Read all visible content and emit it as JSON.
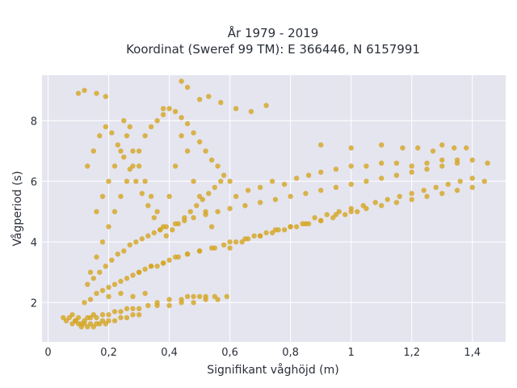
{
  "chart_data": {
    "type": "scatter",
    "title_line1": "År 1979 - 2019",
    "title_line2": "Koordinat (Sweref 99 TM): E 366446, N 6157991",
    "xlabel": "Signifikant våghöjd (m)",
    "ylabel": "Vågperiod (s)",
    "xlim": [
      -0.02,
      1.51
    ],
    "ylim": [
      0.7,
      9.5
    ],
    "x_ticks": [
      {
        "value": 0,
        "label": "0"
      },
      {
        "value": 0.2,
        "label": "0,2"
      },
      {
        "value": 0.4,
        "label": "0,4"
      },
      {
        "value": 0.6,
        "label": "0,6"
      },
      {
        "value": 0.8,
        "label": "0,8"
      },
      {
        "value": 1.0,
        "label": "1"
      },
      {
        "value": 1.2,
        "label": "1,2"
      },
      {
        "value": 1.4,
        "label": "1,4"
      }
    ],
    "y_ticks": [
      {
        "value": 2,
        "label": "2"
      },
      {
        "value": 4,
        "label": "4"
      },
      {
        "value": 6,
        "label": "6"
      },
      {
        "value": 8,
        "label": "8"
      }
    ],
    "grid": true,
    "background": "#e5e5f0",
    "marker_color": "#d4a520",
    "x": [
      0.05,
      0.06,
      0.07,
      0.08,
      0.09,
      0.1,
      0.11,
      0.12,
      0.13,
      0.14,
      0.15,
      0.16,
      0.18,
      0.2,
      0.22,
      0.24,
      0.26,
      0.28,
      0.3,
      0.33,
      0.36,
      0.4,
      0.44,
      0.48,
      0.52,
      0.56,
      0.59,
      0.08,
      0.09,
      0.1,
      0.11,
      0.12,
      0.13,
      0.14,
      0.15,
      0.16,
      0.17,
      0.18,
      0.19,
      0.2,
      0.22,
      0.24,
      0.26,
      0.28,
      0.3,
      0.12,
      0.14,
      0.16,
      0.18,
      0.2,
      0.22,
      0.24,
      0.26,
      0.28,
      0.3,
      0.32,
      0.34,
      0.36,
      0.38,
      0.4,
      0.43,
      0.46,
      0.5,
      0.55,
      0.6,
      0.65,
      0.7,
      0.75,
      0.8,
      0.85,
      0.9,
      0.95,
      1.0,
      1.05,
      1.1,
      1.15,
      1.2,
      1.25,
      1.3,
      1.35,
      1.4,
      1.44,
      0.13,
      0.15,
      0.17,
      0.19,
      0.21,
      0.23,
      0.25,
      0.27,
      0.29,
      0.31,
      0.33,
      0.35,
      0.37,
      0.39,
      0.42,
      0.45,
      0.48,
      0.52,
      0.56,
      0.6,
      0.65,
      0.7,
      0.75,
      0.8,
      0.85,
      0.9,
      0.95,
      1.0,
      1.05,
      1.1,
      1.15,
      1.2,
      1.25,
      1.3,
      1.35,
      0.14,
      0.16,
      0.18,
      0.2,
      0.22,
      0.24,
      0.26,
      0.28,
      0.3,
      0.32,
      0.34,
      0.36,
      0.38,
      0.4,
      0.42,
      0.44,
      0.46,
      0.48,
      0.5,
      0.52,
      0.54,
      0.56,
      0.58,
      0.6,
      0.13,
      0.15,
      0.17,
      0.19,
      0.21,
      0.23,
      0.25,
      0.27,
      0.29,
      0.31,
      0.33,
      0.35,
      0.37,
      0.39,
      0.41,
      0.43,
      0.45,
      0.47,
      0.49,
      0.51,
      0.53,
      0.55,
      0.57,
      0.16,
      0.18,
      0.2,
      0.22,
      0.24,
      0.26,
      0.28,
      0.3,
      0.32,
      0.34,
      0.36,
      0.38,
      0.4,
      0.42,
      0.44,
      0.46,
      0.48,
      0.5,
      0.52,
      0.54,
      0.2,
      0.24,
      0.28,
      0.32,
      0.36,
      0.4,
      0.44,
      0.46,
      0.48,
      0.5,
      0.52,
      0.55,
      0.62,
      0.66,
      0.7,
      0.74,
      0.78,
      0.82,
      0.86,
      0.9,
      0.95,
      1.0,
      1.05,
      1.1,
      1.15,
      1.2,
      1.25,
      1.3,
      1.35,
      1.4,
      1.45,
      0.1,
      0.12,
      0.16,
      0.19,
      0.25,
      0.27,
      0.38,
      0.44,
      0.46,
      0.5,
      0.53,
      0.57,
      0.62,
      0.67,
      0.72,
      0.9,
      1.0,
      1.1,
      1.17,
      1.22,
      1.27,
      1.3,
      1.34,
      1.38,
      0.6,
      0.64,
      0.68,
      0.72,
      0.76,
      0.8,
      0.84,
      0.88,
      0.92,
      0.96,
      1.0,
      1.04,
      1.08,
      1.12,
      1.16,
      1.2,
      1.24,
      1.28,
      1.32,
      1.36,
      1.4,
      0.3,
      0.34,
      0.38,
      0.42,
      0.46,
      0.5,
      0.54,
      0.58,
      0.62,
      0.66,
      0.7,
      0.74,
      0.78,
      0.82,
      0.86,
      0.9,
      0.94,
      0.98,
      1.02
    ],
    "y": [
      1.5,
      1.4,
      1.5,
      1.6,
      1.4,
      1.5,
      1.3,
      1.4,
      1.5,
      1.5,
      1.6,
      1.5,
      1.6,
      1.6,
      1.7,
      1.7,
      1.8,
      1.8,
      1.8,
      1.9,
      1.9,
      1.9,
      2.0,
      2.0,
      2.1,
      2.1,
      2.2,
      1.3,
      1.4,
      1.3,
      1.2,
      1.3,
      1.2,
      1.3,
      1.2,
      1.3,
      1.3,
      1.4,
      1.3,
      1.4,
      1.4,
      1.5,
      1.5,
      1.6,
      1.6,
      2.0,
      2.1,
      2.3,
      2.4,
      2.5,
      2.6,
      2.7,
      2.8,
      2.9,
      3.0,
      3.1,
      3.2,
      3.2,
      3.3,
      3.4,
      3.5,
      3.6,
      3.7,
      3.8,
      4.0,
      4.1,
      4.2,
      4.4,
      4.5,
      4.6,
      4.7,
      4.9,
      5.0,
      5.1,
      5.2,
      5.3,
      5.4,
      5.5,
      5.6,
      5.7,
      5.8,
      6.0,
      2.6,
      2.8,
      3.0,
      3.2,
      3.4,
      3.6,
      3.7,
      3.9,
      4.0,
      4.1,
      4.2,
      4.3,
      4.4,
      4.5,
      4.6,
      4.7,
      4.8,
      4.9,
      5.0,
      5.1,
      5.2,
      5.3,
      5.4,
      5.5,
      5.6,
      5.7,
      5.8,
      5.9,
      6.0,
      6.1,
      6.2,
      6.3,
      6.4,
      6.5,
      6.6,
      3.0,
      3.5,
      4.0,
      4.5,
      5.0,
      5.5,
      6.0,
      6.5,
      7.0,
      7.5,
      7.8,
      8.0,
      8.2,
      8.4,
      8.3,
      8.1,
      7.9,
      7.6,
      7.3,
      7.0,
      6.7,
      6.5,
      6.2,
      6.0,
      6.5,
      7.0,
      7.5,
      7.8,
      7.6,
      7.2,
      6.8,
      6.4,
      6.0,
      5.6,
      5.2,
      4.8,
      4.4,
      4.2,
      4.4,
      4.6,
      4.8,
      5.0,
      5.2,
      5.4,
      5.6,
      5.8,
      6.0,
      5.0,
      5.5,
      6.0,
      6.5,
      7.0,
      7.5,
      7.0,
      6.5,
      6.0,
      5.5,
      5.0,
      4.5,
      5.5,
      6.5,
      7.5,
      7.0,
      6.0,
      5.5,
      5.0,
      4.5,
      2.2,
      2.3,
      2.2,
      2.3,
      2.0,
      2.1,
      2.1,
      2.2,
      2.2,
      2.2,
      2.2,
      2.2,
      5.5,
      5.7,
      5.8,
      6.0,
      5.9,
      6.1,
      6.2,
      6.3,
      6.4,
      6.5,
      6.5,
      6.6,
      6.6,
      6.5,
      6.6,
      6.7,
      6.7,
      6.7,
      6.6,
      8.9,
      9.0,
      8.9,
      8.8,
      8.0,
      7.8,
      8.4,
      9.3,
      9.1,
      8.7,
      8.8,
      8.6,
      8.4,
      8.3,
      8.5,
      7.2,
      7.1,
      7.2,
      7.1,
      7.1,
      7.0,
      7.2,
      7.1,
      7.1,
      3.8,
      4.0,
      4.2,
      4.3,
      4.4,
      4.5,
      4.6,
      4.8,
      4.9,
      5.0,
      5.1,
      5.2,
      5.3,
      5.4,
      5.5,
      5.6,
      5.7,
      5.8,
      5.9,
      6.0,
      6.1,
      3.0,
      3.2,
      3.3,
      3.5,
      3.6,
      3.7,
      3.8,
      3.9,
      4.0,
      4.1,
      4.2,
      4.3,
      4.4,
      4.5,
      4.6,
      4.7,
      4.8,
      4.9,
      5.0
    ]
  }
}
